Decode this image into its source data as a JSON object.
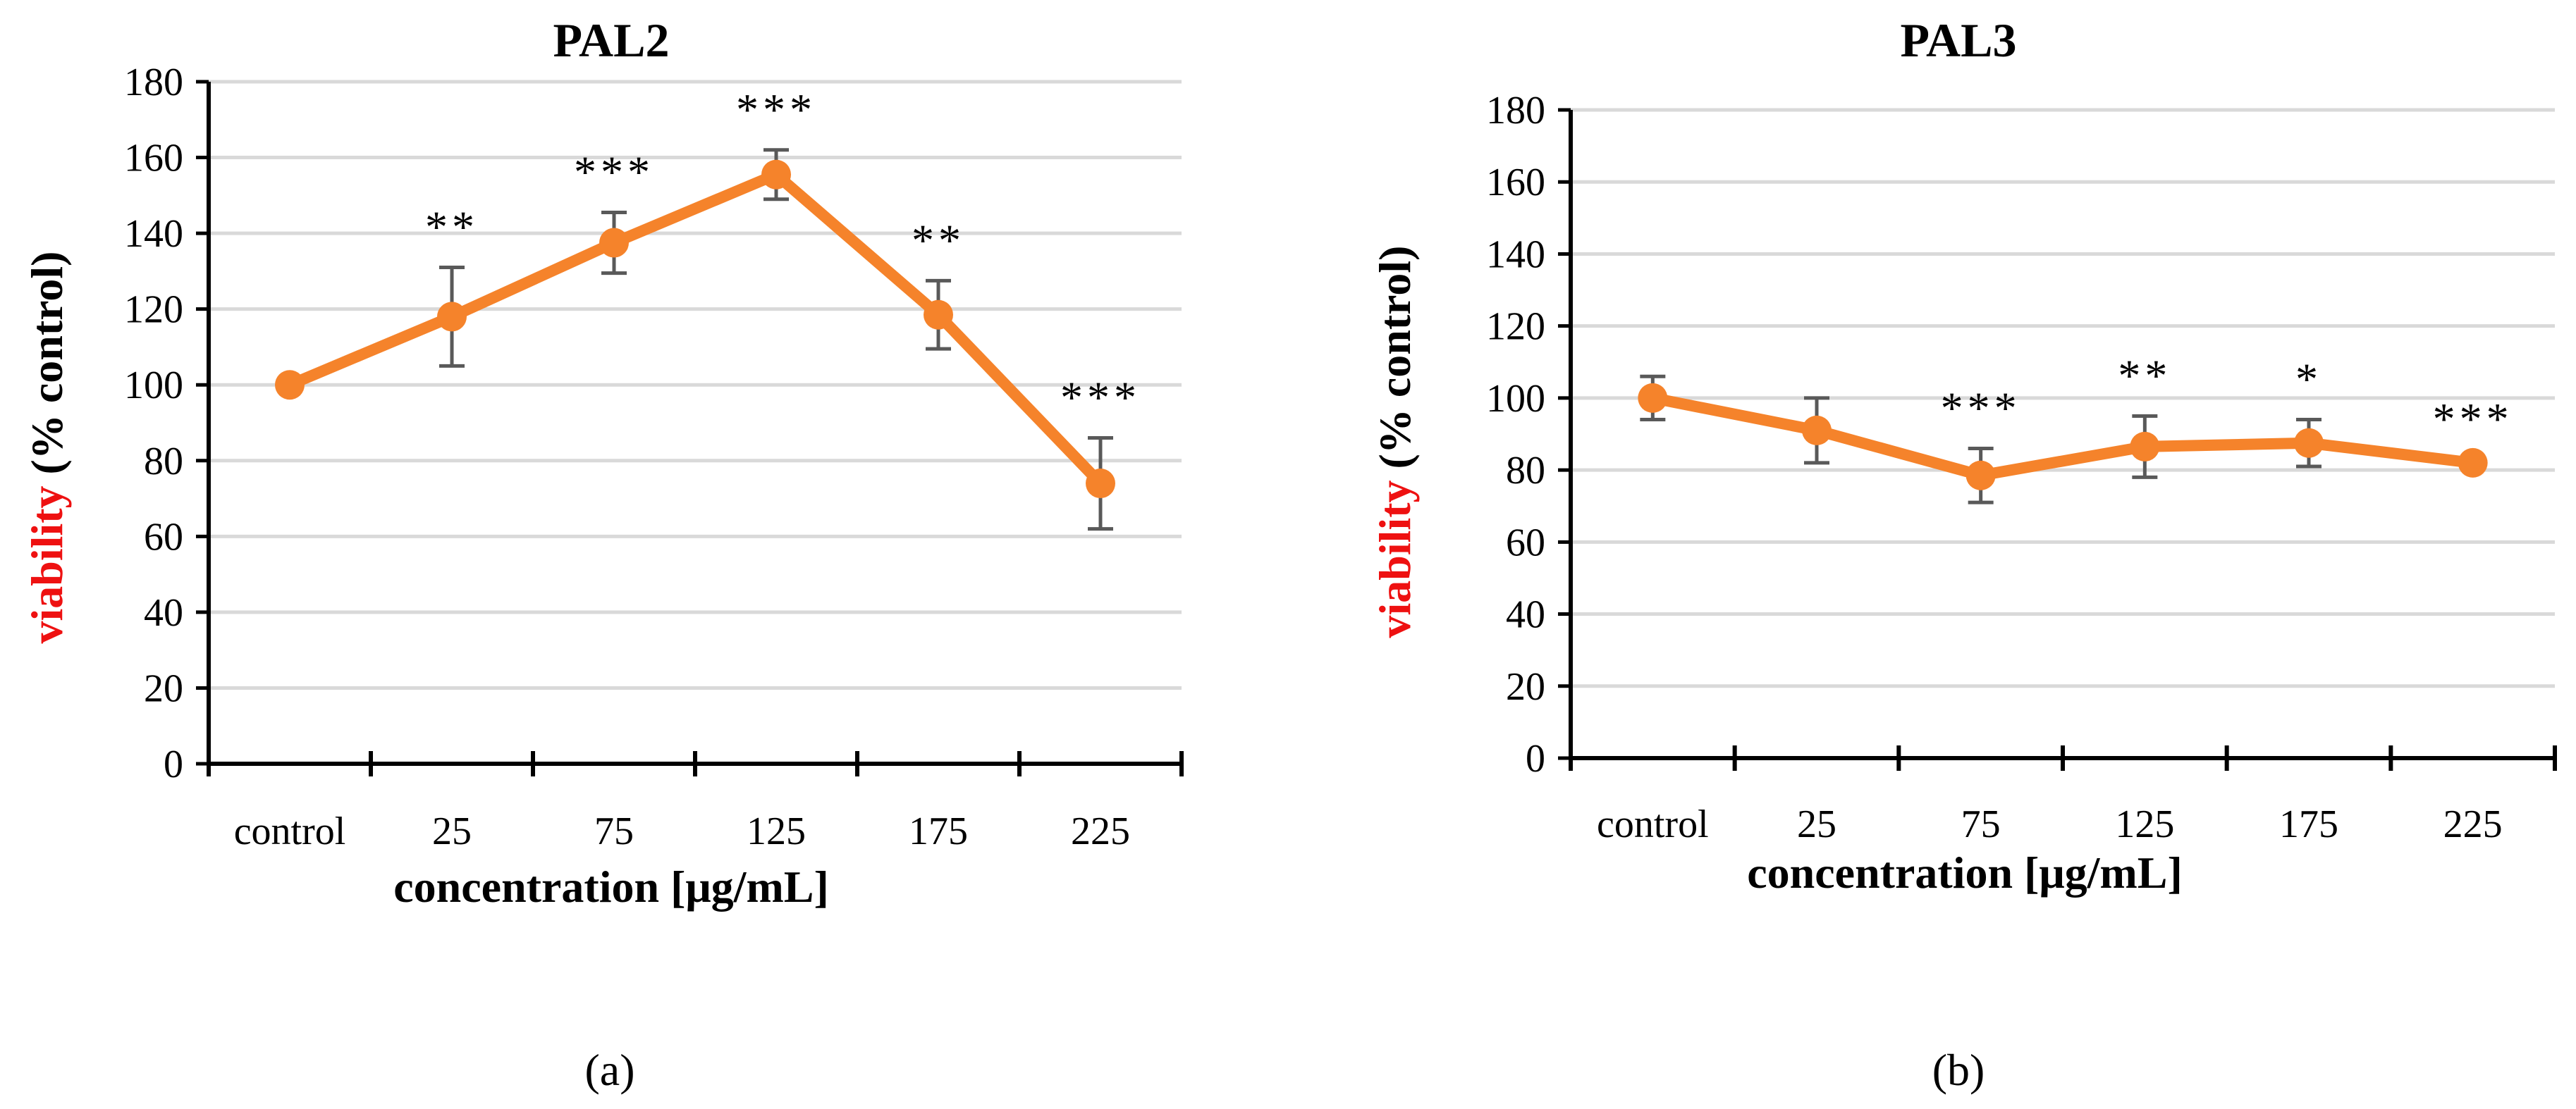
{
  "chart_data": [
    {
      "type": "line",
      "panel": "(a)",
      "title": "PAL2",
      "xlabel": "concentration [μg/mL]",
      "ylabel_red": "viability",
      "ylabel_rest": " (% control)",
      "categories": [
        "control",
        "25",
        "75",
        "125",
        "175",
        "225"
      ],
      "values": [
        100,
        118,
        137.5,
        155.5,
        118.5,
        74
      ],
      "errors": [
        1,
        13,
        8,
        6.5,
        9,
        12
      ],
      "significance": [
        "",
        "**",
        "***",
        "***",
        "**",
        "***"
      ],
      "ylim": [
        0,
        180
      ],
      "yticks": [
        0,
        20,
        40,
        60,
        80,
        100,
        120,
        140,
        160,
        180
      ],
      "grid": true,
      "color": "#f5832b"
    },
    {
      "type": "line",
      "panel": "(b)",
      "title": "PAL3",
      "xlabel": "concentration [μg/mL]",
      "ylabel_red": "viability",
      "ylabel_rest": " (% control)",
      "categories": [
        "control",
        "25",
        "75",
        "125",
        "175",
        "225"
      ],
      "values": [
        100,
        91,
        78.5,
        86.5,
        87.5,
        82
      ],
      "errors": [
        6,
        9,
        7.5,
        8.5,
        6.5,
        1
      ],
      "significance": [
        "",
        "",
        "***",
        "**",
        "*",
        "***"
      ],
      "ylim": [
        0,
        180
      ],
      "yticks": [
        0,
        20,
        40,
        60,
        80,
        100,
        120,
        140,
        160,
        180
      ],
      "grid": true,
      "color": "#f5832b"
    }
  ]
}
